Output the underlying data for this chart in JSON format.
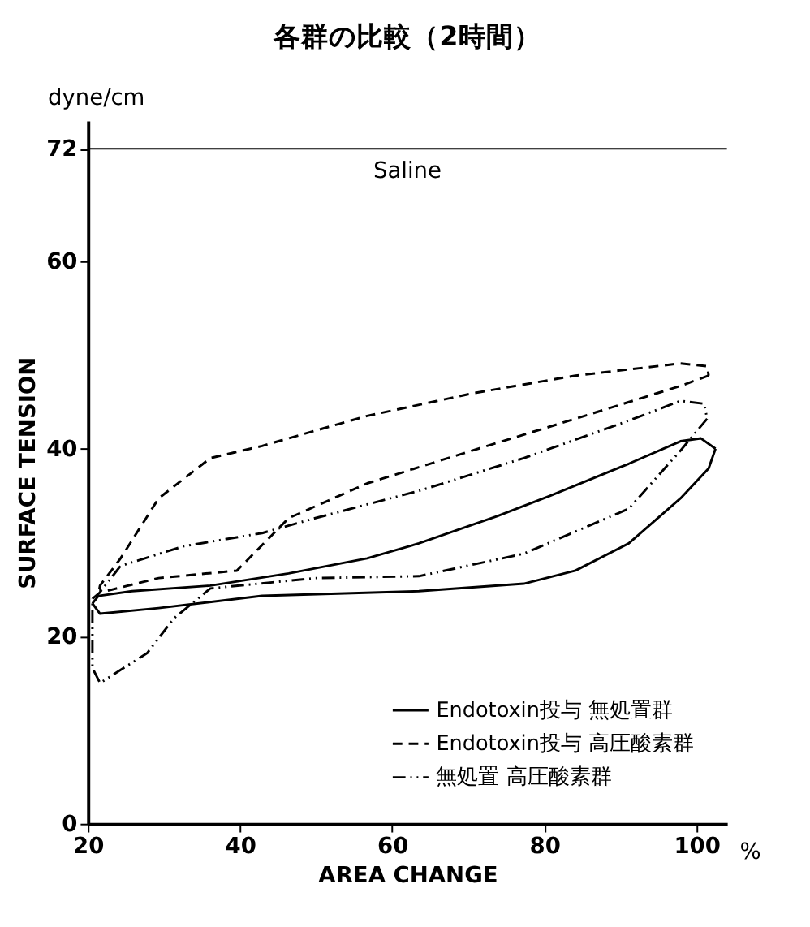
{
  "chart_data": {
    "type": "line",
    "title": "各群の比較（2時間）",
    "xlabel": "AREA CHANGE",
    "ylabel": "SURFACE TENSION",
    "annotations": [
      "dyne/cm",
      "%"
    ],
    "xlim": [
      20,
      104
    ],
    "xticks": [
      20,
      40,
      60,
      80,
      100
    ],
    "ylim": [
      0,
      75
    ],
    "yticks": [
      0,
      20,
      40,
      60,
      72
    ],
    "grid": false,
    "legend": "bottom right",
    "ref_lines": [
      {
        "axis": "y",
        "value": 72,
        "label": "Saline",
        "color": "#000000"
      }
    ],
    "series": [
      {
        "name": "Endotoxin投与 無処置群",
        "color": "#000000",
        "line_style": "solid",
        "x": [
          20.6,
          21.6,
          29.3,
          42.9,
          63.5,
          77.3,
          84.1,
          91.1,
          97.9,
          101.6,
          102.5
        ],
        "values": [
          23.5,
          22.4,
          23,
          24.3,
          24.8,
          25.6,
          27,
          29.9,
          34.7,
          37.9,
          40
        ]
      },
      {
        "name": "Endotoxin投与 高圧酸素群",
        "color": "#000000",
        "line_style": "dashed",
        "x": [
          21.5,
          21.6,
          24.3,
          29.3,
          36.1,
          42.9,
          56.7,
          70.5,
          84.1,
          97.9,
          101.4,
          101.6
        ],
        "values": [
          25,
          25.4,
          28.3,
          34.7,
          39,
          40.3,
          43.5,
          45.9,
          47.8,
          49.1,
          48.8,
          47.8
        ]
      },
      {
        "name": "無処置 高圧酸素群",
        "color": "#000000",
        "line_style": "dashdot",
        "x": [
          20.6,
          21.5,
          24.3,
          32.6,
          42.9,
          49.9,
          63.5,
          77.3,
          91.1,
          97.9,
          101,
          101.4
        ],
        "values": [
          24,
          24.6,
          27.5,
          29.6,
          31,
          32.6,
          35.5,
          39,
          43,
          45.1,
          44.8,
          43.2
        ]
      },
      {
        "color": "#000000",
        "line_style": "solid",
        "x": [
          102.5,
          100.6,
          97.9,
          91.1,
          80.8,
          73.8,
          63.5,
          56.7,
          46.4,
          36.1,
          25.8,
          21.4,
          20.6
        ],
        "values": [
          40,
          41.1,
          40.8,
          38.4,
          35,
          32.8,
          29.9,
          28.3,
          26.7,
          25.4,
          24.8,
          24.3,
          23.5
        ]
      },
      {
        "color": "#000000",
        "line_style": "dashed",
        "x": [
          101.6,
          97.9,
          84.1,
          70.5,
          56.7,
          46.4,
          39.6,
          29.3,
          22.3,
          21.5
        ],
        "values": [
          47.8,
          46.7,
          43.2,
          39.8,
          36.3,
          32.6,
          27,
          26.2,
          24.8,
          25
        ]
      },
      {
        "color": "#000000",
        "line_style": "dashdot",
        "x": [
          101.4,
          97.9,
          91.1,
          77.3,
          63.5,
          49.9,
          36.1,
          31.3,
          27.8,
          21.6,
          20.6,
          20.6
        ],
        "values": [
          43.2,
          39.8,
          33.6,
          28.8,
          26.4,
          26.2,
          25.1,
          21.9,
          18.2,
          15,
          16.6,
          24
        ]
      }
    ]
  }
}
